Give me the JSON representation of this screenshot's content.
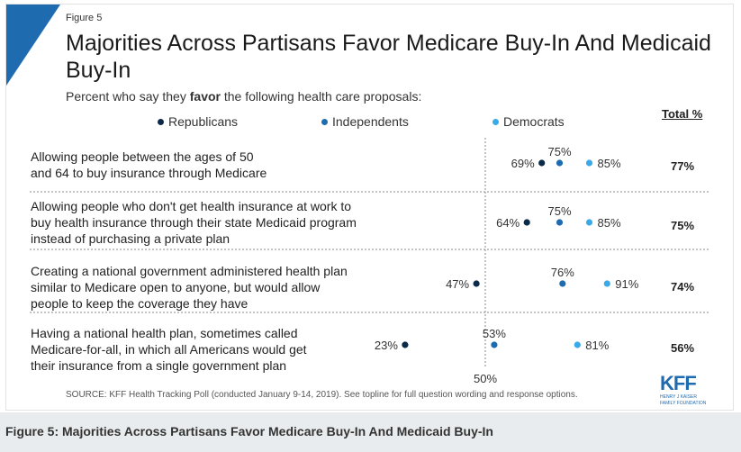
{
  "figure_label": "Figure 5",
  "caption": "Figure 5: Majorities Across Partisans Favor Medicare Buy-In And Medicaid Buy-In",
  "source": "SOURCE: KFF Health Tracking Poll (conducted January 9-14, 2019). See topline for full question wording and response options.",
  "logo": {
    "main": "KFF",
    "sub_line1": "HENRY J KAISER",
    "sub_line2": "FAMILY FOUNDATION"
  },
  "colors": {
    "republicans": "#0b2a4a",
    "independents": "#1f6bb0",
    "democrats": "#3aa9e8",
    "accent": "#1f6bb0"
  },
  "chart_data": {
    "type": "scatter",
    "title": "Majorities Across Partisans Favor Medicare Buy-In And Medicaid Buy-In",
    "subtitle_pre": "Percent who say they ",
    "subtitle_bold": "favor",
    "subtitle_post": " the following health care proposals:",
    "total_header": "Total %",
    "reference_label": "50%",
    "reference_value": 50,
    "xlim": [
      0,
      100
    ],
    "legend_position": "top",
    "series": [
      {
        "name": "Republicans",
        "color": "#0b2a4a"
      },
      {
        "name": "Independents",
        "color": "#1f6bb0"
      },
      {
        "name": "Democrats",
        "color": "#3aa9e8"
      }
    ],
    "rows": [
      {
        "lines": [
          "Allowing people between the ages of 50",
          "and 64 to buy insurance through Medicare"
        ],
        "values": [
          69,
          75,
          85
        ],
        "labels": [
          "69%",
          "75%",
          "85%"
        ],
        "total": "77%"
      },
      {
        "lines": [
          "Allowing people who don't get health insurance at work to",
          "buy health insurance through their state Medicaid program",
          "instead of purchasing a private plan"
        ],
        "values": [
          64,
          75,
          85
        ],
        "labels": [
          "64%",
          "75%",
          "85%"
        ],
        "total": "75%"
      },
      {
        "lines": [
          "Creating a national government administered health plan",
          "similar to Medicare open to anyone, but would allow",
          "people to keep the coverage they have"
        ],
        "values": [
          47,
          76,
          91
        ],
        "labels": [
          "47%",
          "76%",
          "91%"
        ],
        "total": "74%"
      },
      {
        "lines": [
          "Having a national health plan, sometimes called",
          "Medicare-for-all, in which all Americans would get",
          "their insurance from a single government plan"
        ],
        "values": [
          23,
          53,
          81
        ],
        "labels": [
          "23%",
          "53%",
          "81%"
        ],
        "total": "56%"
      }
    ]
  }
}
